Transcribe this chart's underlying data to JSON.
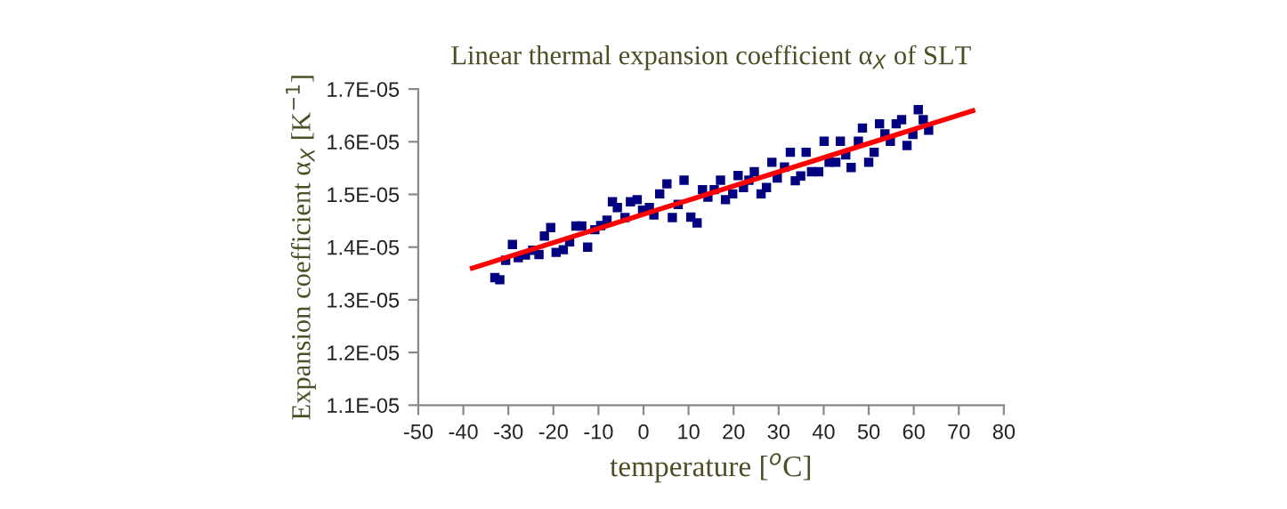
{
  "chart_data": {
    "type": "scatter",
    "title": "Linear thermal expansion coefficient α$_{X}$ of SLT",
    "xlabel": "temperature [$^{o}$C]",
    "ylabel": "Expansion coefficient α$_{X}$ [K$^{−1}$]",
    "xlim": [
      -50,
      80
    ],
    "xticks": [
      -50,
      -40,
      -30,
      -20,
      -10,
      0,
      10,
      20,
      30,
      40,
      50,
      60,
      70,
      80
    ],
    "ylim": [
      1.1e-05,
      1.7e-05
    ],
    "yticks": [
      {
        "value": 1.1e-05,
        "label": "1.1E-05"
      },
      {
        "value": 1.2e-05,
        "label": "1.2E-05"
      },
      {
        "value": 1.3e-05,
        "label": "1.3E-05"
      },
      {
        "value": 1.4e-05,
        "label": "1.4E-05"
      },
      {
        "value": 1.5e-05,
        "label": "1.5E-05"
      },
      {
        "value": 1.6e-05,
        "label": "1.6E-05"
      },
      {
        "value": 1.7e-05,
        "label": "1.7E-05"
      }
    ],
    "grid": false,
    "legend": false,
    "marker": "square",
    "series": [
      {
        "color": "#000080",
        "x": [
          -33.0,
          -31.9,
          -30.6,
          -29.1,
          -27.8,
          -26.2,
          -24.6,
          -23.2,
          -22.0,
          -20.6,
          -19.4,
          -17.8,
          -16.4,
          -15.0,
          -13.7,
          -12.4,
          -10.8,
          -9.5,
          -8.1,
          -6.9,
          -5.8,
          -4.1,
          -2.9,
          -1.4,
          -0.2,
          1.3,
          2.3,
          3.6,
          5.2,
          6.4,
          7.7,
          9.0,
          10.5,
          11.9,
          13.1,
          14.3,
          15.7,
          17.1,
          18.2,
          19.8,
          21.0,
          22.2,
          23.4,
          24.6,
          26.1,
          27.3,
          28.5,
          29.7,
          31.3,
          32.6,
          33.7,
          34.9,
          36.1,
          37.3,
          38.9,
          40.1,
          41.2,
          42.7,
          43.7,
          44.9,
          46.1,
          47.7,
          48.6,
          50.0,
          51.2,
          52.4,
          53.6,
          54.8,
          56.1,
          57.3,
          58.5,
          59.8,
          61.0,
          62.1,
          63.3
        ],
        "values": [
          1.342e-05,
          1.338e-05,
          1.375e-05,
          1.405e-05,
          1.38e-05,
          1.385e-05,
          1.394e-05,
          1.386e-05,
          1.421e-05,
          1.437e-05,
          1.39e-05,
          1.395e-05,
          1.41e-05,
          1.44e-05,
          1.44e-05,
          1.4e-05,
          1.433e-05,
          1.441e-05,
          1.451e-05,
          1.486e-05,
          1.475e-05,
          1.456e-05,
          1.486e-05,
          1.49e-05,
          1.47e-05,
          1.475e-05,
          1.461e-05,
          1.501e-05,
          1.52e-05,
          1.456e-05,
          1.481e-05,
          1.527e-05,
          1.457e-05,
          1.446e-05,
          1.509e-05,
          1.495e-05,
          1.509e-05,
          1.527e-05,
          1.49e-05,
          1.501e-05,
          1.536e-05,
          1.513e-05,
          1.527e-05,
          1.543e-05,
          1.501e-05,
          1.513e-05,
          1.561e-05,
          1.531e-05,
          1.552e-05,
          1.58e-05,
          1.526e-05,
          1.535e-05,
          1.58e-05,
          1.543e-05,
          1.543e-05,
          1.601e-05,
          1.561e-05,
          1.561e-05,
          1.601e-05,
          1.575e-05,
          1.551e-05,
          1.601e-05,
          1.626e-05,
          1.561e-05,
          1.58e-05,
          1.634e-05,
          1.615e-05,
          1.601e-05,
          1.634e-05,
          1.642e-05,
          1.593e-05,
          1.614e-05,
          1.661e-05,
          1.642e-05,
          1.622e-05
        ]
      },
      {
        "type": "line",
        "color": "#ff0000",
        "marker": "none",
        "line_style": "solid",
        "x": [
          -38.0,
          73.1
        ],
        "values": [
          1.36e-05,
          1.659e-05
        ]
      }
    ]
  }
}
